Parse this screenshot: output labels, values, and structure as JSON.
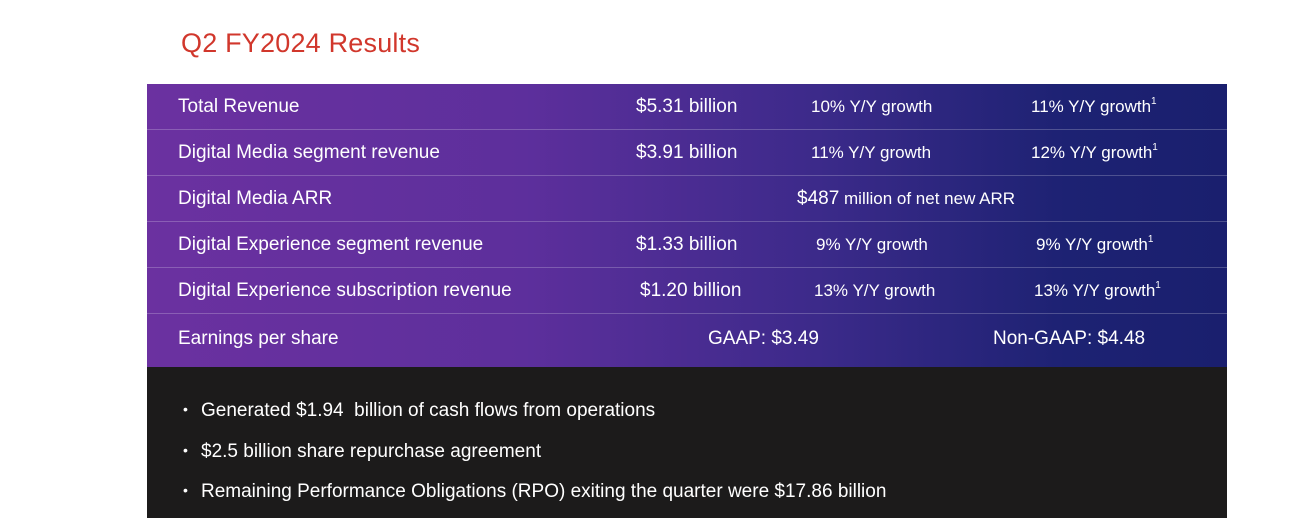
{
  "title": "Q2 FY2024 Results",
  "accent_color": "#d1372c",
  "rows": [
    {
      "label": "Total Revenue",
      "amount": "$5.31 billion",
      "growth": "10% Y/Y growth",
      "growth2": "11% Y/Y growth",
      "footnote": "1"
    },
    {
      "label": "Digital Media segment revenue",
      "amount": "$3.91 billion",
      "growth": "11% Y/Y growth",
      "growth2": "12% Y/Y growth",
      "footnote": "1"
    },
    {
      "label": "Digital Media ARR",
      "value_main": "$487",
      "value_rest": " million of net new ARR"
    },
    {
      "label": "Digital Experience segment revenue",
      "amount": "$1.33 billion",
      "growth": "9% Y/Y growth",
      "growth2": "9% Y/Y growth",
      "footnote": "1"
    },
    {
      "label": "Digital Experience subscription revenue",
      "amount": "$1.20 billion",
      "growth": "13% Y/Y growth",
      "growth2": "13% Y/Y growth",
      "footnote": "1"
    },
    {
      "label": "Earnings per share",
      "gaap": "GAAP: $3.49",
      "non_gaap": "Non-GAAP: $4.48"
    }
  ],
  "bullets": [
    "Generated $1.94  billion of cash flows from operations",
    "$2.5 billion share repurchase agreement",
    "Remaining Performance Obligations (RPO) exiting the quarter were $17.86 billion"
  ]
}
